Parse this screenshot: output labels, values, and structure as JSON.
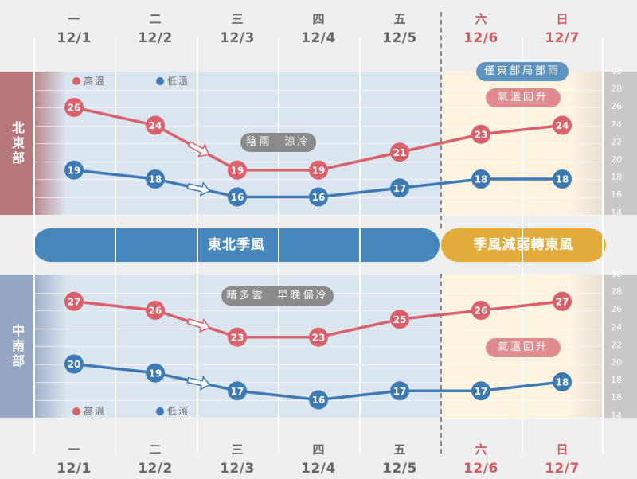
{
  "days": [
    {
      "weekday": "一",
      "date": "12/1",
      "weekend": false
    },
    {
      "weekday": "二",
      "date": "12/2",
      "weekend": false
    },
    {
      "weekday": "三",
      "date": "12/3",
      "weekend": false
    },
    {
      "weekday": "四",
      "date": "12/4",
      "weekend": false
    },
    {
      "weekday": "五",
      "date": "12/5",
      "weekend": false
    },
    {
      "weekday": "六",
      "date": "12/6",
      "weekend": true
    },
    {
      "weekday": "日",
      "date": "12/7",
      "weekend": true
    }
  ],
  "colors": {
    "high": "#d9616b",
    "low": "#3d7ab5",
    "weekday_bg": "#dbe5ef",
    "weekend_bg": "#fdf3df",
    "north_label": "#b5767c",
    "south_label": "#94a6c2",
    "monsoon": "#4586bd",
    "weakening": "#e3ac3a",
    "note_gray": "#8b8b8b",
    "note_blue": "#5e93c0",
    "note_red": "#e08c8f"
  },
  "legend": {
    "high": "高溫",
    "low": "低溫"
  },
  "axis_ticks": [
    "30",
    "28",
    "26",
    "24",
    "22",
    "20",
    "18",
    "16",
    "14"
  ],
  "north": {
    "label": "北東部",
    "high": [
      26,
      24,
      19,
      19,
      21,
      23,
      24
    ],
    "low": [
      19,
      18,
      16,
      16,
      17,
      18,
      18
    ],
    "notes": {
      "weather": "陰雨　涼冷",
      "rain": "僅東部局部雨",
      "warming": "氣溫回升"
    }
  },
  "south": {
    "label": "中南部",
    "high": [
      27,
      26,
      23,
      23,
      25,
      26,
      27
    ],
    "low": [
      20,
      19,
      17,
      16,
      17,
      17,
      18
    ],
    "notes": {
      "weather": "晴多雲　早晚偏冷",
      "warming": "氣溫回升"
    }
  },
  "bands": {
    "monsoon": "東北季風",
    "weakening": "季風減弱轉東風"
  },
  "chart_data": [
    {
      "type": "line",
      "title": "北東部",
      "categories": [
        "12/1",
        "12/2",
        "12/3",
        "12/4",
        "12/5",
        "12/6",
        "12/7"
      ],
      "series": [
        {
          "name": "高溫",
          "values": [
            26,
            24,
            19,
            19,
            21,
            23,
            24
          ]
        },
        {
          "name": "低溫",
          "values": [
            19,
            18,
            16,
            16,
            17,
            18,
            18
          ]
        }
      ],
      "ylim": [
        14,
        30
      ],
      "annotations": [
        "陰雨 涼冷",
        "僅東部局部雨",
        "氣溫回升"
      ],
      "legend_position": "top-left"
    },
    {
      "type": "line",
      "title": "中南部",
      "categories": [
        "12/1",
        "12/2",
        "12/3",
        "12/4",
        "12/5",
        "12/6",
        "12/7"
      ],
      "series": [
        {
          "name": "高溫",
          "values": [
            27,
            26,
            23,
            23,
            25,
            26,
            27
          ]
        },
        {
          "name": "低溫",
          "values": [
            20,
            19,
            17,
            16,
            17,
            17,
            18
          ]
        }
      ],
      "ylim": [
        14,
        30
      ],
      "annotations": [
        "晴多雲 早晚偏冷",
        "氣溫回升"
      ],
      "legend_position": "bottom-left"
    }
  ]
}
